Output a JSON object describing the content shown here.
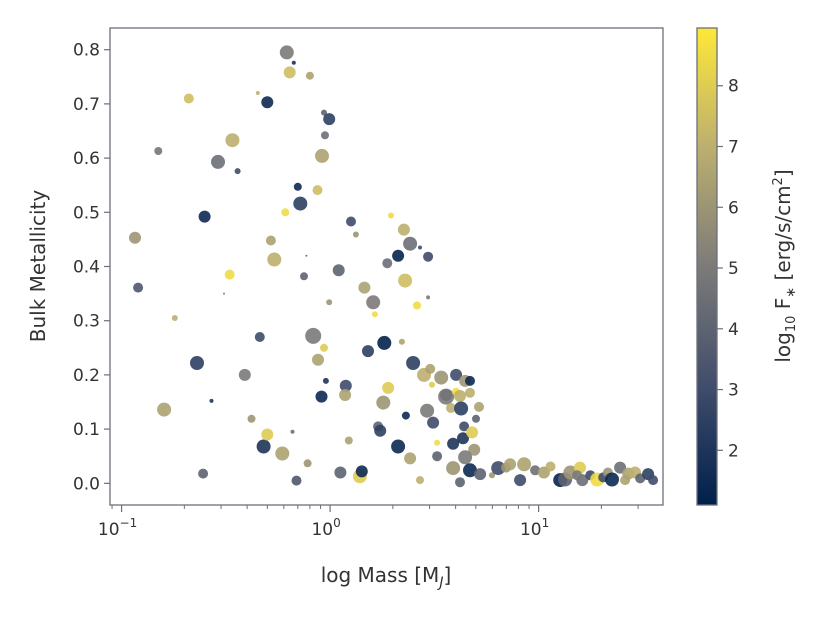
{
  "chart_data": {
    "type": "scatter",
    "xlabel": "log Mass [M",
    "xlabel_sub": "J",
    "xlabel_end": "]",
    "ylabel": "Bulk Metallicity",
    "xscale": "log",
    "xlim": [
      0.088,
      39.5
    ],
    "ylim": [
      -0.04,
      0.84
    ],
    "yticks": [
      0.0,
      0.1,
      0.2,
      0.3,
      0.4,
      0.5,
      0.6,
      0.7,
      0.8
    ],
    "ytick_labels": [
      "0.0",
      "0.1",
      "0.2",
      "0.3",
      "0.4",
      "0.5",
      "0.6",
      "0.7",
      "0.8"
    ],
    "xticks": [
      0.1,
      1,
      10
    ],
    "xtick_labels": [
      {
        "base": "10",
        "exp": "−1"
      },
      {
        "base": "10",
        "exp": "0"
      },
      {
        "base": "10",
        "exp": "1"
      }
    ],
    "colorbar": {
      "label_prefix": "log",
      "label_sub": "10",
      "label_mid": " F",
      "label_star": "∗",
      "label_unit": " [erg/s/cm",
      "label_sup": "2",
      "label_end": "]",
      "range": [
        1.1,
        8.95
      ],
      "ticks": [
        2,
        3,
        4,
        5,
        6,
        7,
        8
      ],
      "tick_labels": [
        "2",
        "3",
        "4",
        "5",
        "6",
        "7",
        "8"
      ],
      "colormap": "cividis",
      "colormap_stops": [
        "#00204c",
        "#414d6b",
        "#7c7b78",
        "#bcaf6f",
        "#fee838"
      ]
    },
    "columns": [
      "mass",
      "metallicity",
      "log10_flux",
      "size"
    ],
    "points": [
      [
        0.116,
        0.453,
        6.0,
        6
      ],
      [
        0.12,
        0.361,
        3.5,
        5
      ],
      [
        0.15,
        0.613,
        4.8,
        4
      ],
      [
        0.16,
        0.136,
        6.5,
        7
      ],
      [
        0.18,
        0.305,
        7.0,
        3
      ],
      [
        0.21,
        0.71,
        7.5,
        5
      ],
      [
        0.23,
        0.222,
        2.5,
        7
      ],
      [
        0.25,
        0.492,
        1.5,
        6
      ],
      [
        0.246,
        0.018,
        4.0,
        5
      ],
      [
        0.27,
        0.152,
        2.0,
        2
      ],
      [
        0.29,
        0.593,
        4.5,
        7
      ],
      [
        0.31,
        0.35,
        4.5,
        1
      ],
      [
        0.33,
        0.385,
        8.5,
        5
      ],
      [
        0.34,
        0.633,
        7.0,
        7
      ],
      [
        0.36,
        0.576,
        3.0,
        3
      ],
      [
        0.39,
        0.2,
        5.0,
        6
      ],
      [
        0.42,
        0.119,
        6.0,
        4
      ],
      [
        0.45,
        0.72,
        7.0,
        2
      ],
      [
        0.46,
        0.27,
        3.0,
        5
      ],
      [
        0.48,
        0.068,
        2.0,
        7
      ],
      [
        0.5,
        0.703,
        1.5,
        6
      ],
      [
        0.5,
        0.09,
        8.0,
        6
      ],
      [
        0.52,
        0.448,
        6.5,
        5
      ],
      [
        0.54,
        0.413,
        7.0,
        7
      ],
      [
        0.59,
        0.055,
        6.5,
        7
      ],
      [
        0.61,
        0.5,
        8.5,
        4
      ],
      [
        0.62,
        0.795,
        5.0,
        7
      ],
      [
        0.64,
        0.758,
        7.5,
        6
      ],
      [
        0.66,
        0.095,
        4.5,
        2
      ],
      [
        0.67,
        0.776,
        1.8,
        2
      ],
      [
        0.69,
        0.005,
        3.5,
        5
      ],
      [
        0.7,
        0.547,
        1.5,
        4
      ],
      [
        0.72,
        0.516,
        2.5,
        7
      ],
      [
        0.75,
        0.382,
        4.0,
        4
      ],
      [
        0.77,
        0.42,
        4.0,
        1
      ],
      [
        0.78,
        0.037,
        6.0,
        4
      ],
      [
        0.8,
        0.752,
        6.5,
        4
      ],
      [
        0.83,
        0.272,
        5.0,
        8
      ],
      [
        0.87,
        0.541,
        7.5,
        5
      ],
      [
        0.875,
        0.228,
        6.5,
        6
      ],
      [
        0.91,
        0.16,
        1.5,
        6
      ],
      [
        0.915,
        0.604,
        6.5,
        7
      ],
      [
        0.935,
        0.684,
        4.0,
        3
      ],
      [
        0.945,
        0.642,
        4.5,
        4
      ],
      [
        0.955,
        0.189,
        2.0,
        3
      ],
      [
        0.99,
        0.672,
        2.5,
        6
      ],
      [
        0.99,
        0.334,
        6.0,
        3
      ],
      [
        0.935,
        0.25,
        8.0,
        4
      ],
      [
        1.1,
        0.393,
        4.0,
        6
      ],
      [
        1.12,
        0.02,
        4.0,
        6
      ],
      [
        1.19,
        0.18,
        3.0,
        6
      ],
      [
        1.18,
        0.163,
        6.5,
        6
      ],
      [
        1.23,
        0.079,
        6.5,
        4
      ],
      [
        1.26,
        0.483,
        3.0,
        5
      ],
      [
        1.33,
        0.459,
        6.0,
        3
      ],
      [
        1.39,
        0.013,
        8.0,
        7
      ],
      [
        1.42,
        0.022,
        1.5,
        6
      ],
      [
        1.46,
        0.361,
        6.5,
        6
      ],
      [
        1.52,
        0.244,
        2.5,
        6
      ],
      [
        1.61,
        0.334,
        5.0,
        7
      ],
      [
        1.64,
        0.312,
        8.5,
        3
      ],
      [
        1.82,
        0.259,
        1.2,
        7
      ],
      [
        1.88,
        0.406,
        4.5,
        5
      ],
      [
        1.9,
        0.176,
        8.0,
        6
      ],
      [
        1.8,
        0.149,
        6.0,
        7
      ],
      [
        1.7,
        0.105,
        4.0,
        5
      ],
      [
        1.74,
        0.097,
        2.5,
        6
      ],
      [
        1.96,
        0.494,
        8.5,
        3
      ],
      [
        2.12,
        0.068,
        1.5,
        7
      ],
      [
        2.12,
        0.42,
        1.3,
        6
      ],
      [
        2.21,
        0.261,
        6.5,
        3
      ],
      [
        2.26,
        0.468,
        7.0,
        6
      ],
      [
        2.31,
        0.125,
        1.5,
        4
      ],
      [
        2.42,
        0.442,
        4.5,
        7
      ],
      [
        2.29,
        0.374,
        7.5,
        7
      ],
      [
        2.5,
        0.222,
        2.5,
        7
      ],
      [
        2.61,
        0.328,
        8.5,
        4
      ],
      [
        2.42,
        0.046,
        6.5,
        6
      ],
      [
        2.7,
        0.435,
        3.0,
        2
      ],
      [
        2.95,
        0.418,
        3.0,
        5
      ],
      [
        2.95,
        0.343,
        5.0,
        2
      ],
      [
        2.7,
        0.006,
        7.0,
        4
      ],
      [
        2.82,
        0.2,
        7.0,
        7
      ],
      [
        2.92,
        0.134,
        5.0,
        7
      ],
      [
        3.02,
        0.211,
        6.5,
        5
      ],
      [
        3.12,
        0.112,
        3.0,
        6
      ],
      [
        3.26,
        0.075,
        8.5,
        3
      ],
      [
        3.08,
        0.182,
        8.0,
        3
      ],
      [
        3.26,
        0.05,
        4.0,
        5
      ],
      [
        3.41,
        0.195,
        6.0,
        7
      ],
      [
        3.6,
        0.163,
        2.5,
        6
      ],
      [
        3.6,
        0.16,
        5.0,
        8
      ],
      [
        3.8,
        0.139,
        7.0,
        5
      ],
      [
        3.89,
        0.073,
        2.0,
        6
      ],
      [
        4.02,
        0.169,
        8.5,
        4
      ],
      [
        4.02,
        0.2,
        3.0,
        6
      ],
      [
        4.2,
        0.161,
        7.0,
        6
      ],
      [
        4.25,
        0.138,
        2.5,
        7
      ],
      [
        4.34,
        0.083,
        2.0,
        6
      ],
      [
        4.39,
        0.105,
        3.0,
        5
      ],
      [
        4.44,
        0.189,
        6.0,
        6
      ],
      [
        4.69,
        0.189,
        1.5,
        5
      ],
      [
        4.69,
        0.167,
        7.0,
        5
      ],
      [
        4.8,
        0.094,
        8.0,
        6
      ],
      [
        4.91,
        0.062,
        6.0,
        6
      ],
      [
        5.01,
        0.119,
        4.0,
        4
      ],
      [
        5.18,
        0.141,
        6.5,
        5
      ],
      [
        4.44,
        0.048,
        5.0,
        7
      ],
      [
        3.89,
        0.028,
        6.0,
        7
      ],
      [
        4.69,
        0.024,
        1.5,
        7
      ],
      [
        4.2,
        0.002,
        4.0,
        5
      ],
      [
        5.24,
        0.017,
        4.0,
        6
      ],
      [
        5.98,
        0.015,
        6.0,
        3
      ],
      [
        6.4,
        0.028,
        3.0,
        7
      ],
      [
        6.98,
        0.029,
        6.0,
        5
      ],
      [
        7.3,
        0.035,
        6.5,
        6
      ],
      [
        8.15,
        0.006,
        3.0,
        6
      ],
      [
        8.52,
        0.035,
        6.5,
        7
      ],
      [
        9.62,
        0.024,
        4.5,
        5
      ],
      [
        10.6,
        0.02,
        6.5,
        6
      ],
      [
        11.4,
        0.031,
        7.0,
        5
      ],
      [
        12.7,
        0.006,
        1.3,
        7
      ],
      [
        13.4,
        0.007,
        4.0,
        7
      ],
      [
        14.2,
        0.02,
        6.0,
        7
      ],
      [
        15.8,
        0.029,
        8.0,
        6
      ],
      [
        16.2,
        0.006,
        4.5,
        6
      ],
      [
        17.7,
        0.015,
        3.0,
        5
      ],
      [
        19.1,
        0.007,
        8.5,
        7
      ],
      [
        20.4,
        0.011,
        3.0,
        5
      ],
      [
        21.5,
        0.02,
        6.0,
        5
      ],
      [
        22.5,
        0.007,
        1.5,
        7
      ],
      [
        24.6,
        0.029,
        4.5,
        6
      ],
      [
        26.9,
        0.018,
        6.5,
        6
      ],
      [
        29.0,
        0.02,
        7.0,
        6
      ],
      [
        30.7,
        0.009,
        4.0,
        5
      ],
      [
        33.5,
        0.017,
        2.5,
        6
      ],
      [
        35.4,
        0.006,
        3.0,
        5
      ],
      [
        15.3,
        0.015,
        5.0,
        5
      ],
      [
        26.0,
        0.006,
        6.5,
        5
      ]
    ]
  }
}
